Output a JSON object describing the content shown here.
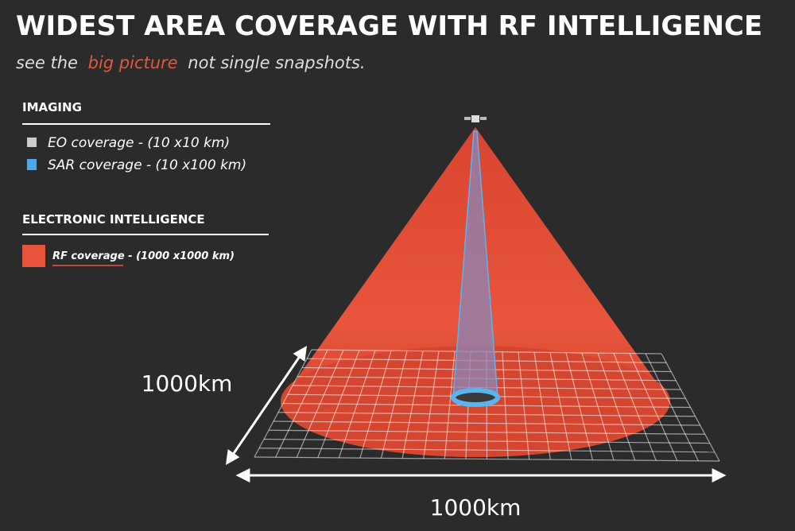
{
  "header": {
    "title": "WIDEST AREA COVERAGE WITH RF INTELLIGENCE",
    "subtitle": [
      "see the",
      "big picture",
      "not single snapshots."
    ]
  },
  "legend": {
    "sections": [
      {
        "heading": "IMAGING",
        "items": [
          "EO coverage - (10 x10 km)",
          "SAR coverage - (10 x100 km)"
        ]
      },
      {
        "heading": "ELECTRONIC INTELLIGENCE",
        "items": [
          "RF coverage - (1000 x1000 km)"
        ]
      }
    ]
  },
  "diagram": {
    "depth_label": "1000km",
    "width_label": "1000km"
  }
}
